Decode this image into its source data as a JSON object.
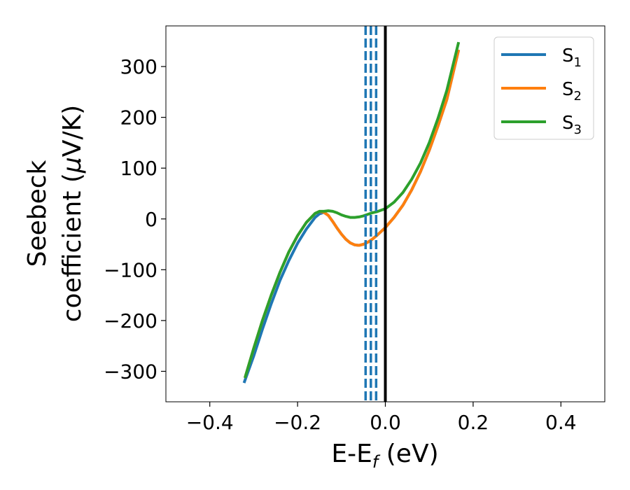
{
  "chart_data": {
    "type": "line",
    "xlabel": {
      "main": "E-E",
      "sub": "f",
      "tail": " (eV)"
    },
    "ylabel": {
      "line1": "Seebeck",
      "line2_pre": "coefficient  (",
      "line2_mu": "μ",
      "line2_post": "V/K)"
    },
    "xlim": [
      -0.5,
      0.5
    ],
    "ylim": [
      -360,
      380
    ],
    "xticks": [
      {
        "value": -0.4,
        "label": "−0.4"
      },
      {
        "value": -0.2,
        "label": "−0.2"
      },
      {
        "value": 0.0,
        "label": "0.0"
      },
      {
        "value": 0.2,
        "label": "0.2"
      },
      {
        "value": 0.4,
        "label": "0.4"
      }
    ],
    "yticks": [
      {
        "value": -300,
        "label": "−300"
      },
      {
        "value": -200,
        "label": "−200"
      },
      {
        "value": -100,
        "label": "−100"
      },
      {
        "value": 0,
        "label": "0"
      },
      {
        "value": 100,
        "label": "100"
      },
      {
        "value": 200,
        "label": "200"
      },
      {
        "value": 300,
        "label": "300"
      }
    ],
    "grid": false,
    "legend_position": "top-right",
    "fermi_line": {
      "x": 0.0,
      "color": "#000000"
    },
    "dashed_vlines": {
      "x": [
        -0.045,
        -0.033,
        -0.021
      ],
      "color": "#1f77b4"
    },
    "series": [
      {
        "name": "S",
        "sub": "1",
        "color": "#1f77b4",
        "x": [
          -0.322,
          -0.3,
          -0.28,
          -0.26,
          -0.24,
          -0.22,
          -0.2,
          -0.18,
          -0.16,
          -0.15,
          -0.14,
          -0.13,
          -0.12,
          -0.11,
          -0.1,
          -0.09,
          -0.08,
          -0.07,
          -0.06,
          -0.05,
          -0.04,
          -0.03,
          -0.02,
          -0.01,
          0.0,
          0.02,
          0.04,
          0.06,
          0.08,
          0.1,
          0.12,
          0.14,
          0.167
        ],
        "y": [
          -323,
          -270,
          -217,
          -167,
          -121,
          -82,
          -48,
          -20,
          3,
          10,
          13,
          7,
          -5,
          -18,
          -30,
          -40,
          -47,
          -51,
          -52,
          -50,
          -46,
          -40,
          -33,
          -25,
          -17,
          3,
          27,
          57,
          93,
          135,
          183,
          235,
          333
        ]
      },
      {
        "name": "S",
        "sub": "2",
        "color": "#ff7f0e",
        "x": [
          -0.32,
          -0.3,
          -0.28,
          -0.26,
          -0.24,
          -0.22,
          -0.2,
          -0.18,
          -0.16,
          -0.15,
          -0.14,
          -0.13,
          -0.12,
          -0.11,
          -0.1,
          -0.09,
          -0.08,
          -0.07,
          -0.06,
          -0.05,
          -0.04,
          -0.03,
          -0.02,
          -0.01,
          0.0,
          0.02,
          0.04,
          0.06,
          0.08,
          0.1,
          0.12,
          0.14,
          0.167
        ],
        "y": [
          -313,
          -255,
          -200,
          -150,
          -105,
          -65,
          -33,
          -7,
          11,
          15,
          13,
          7,
          -5,
          -18,
          -30,
          -40,
          -47,
          -51,
          -52,
          -50,
          -46,
          -40,
          -33,
          -25,
          -17,
          3,
          27,
          57,
          93,
          135,
          183,
          235,
          333
        ]
      },
      {
        "name": "S",
        "sub": "3",
        "color": "#2ca02c",
        "x": [
          -0.32,
          -0.3,
          -0.28,
          -0.26,
          -0.24,
          -0.22,
          -0.2,
          -0.18,
          -0.16,
          -0.15,
          -0.14,
          -0.13,
          -0.12,
          -0.11,
          -0.1,
          -0.09,
          -0.08,
          -0.07,
          -0.06,
          -0.05,
          -0.04,
          -0.03,
          -0.02,
          -0.01,
          0.0,
          0.02,
          0.04,
          0.06,
          0.08,
          0.1,
          0.12,
          0.14,
          0.167
        ],
        "y": [
          -313,
          -255,
          -200,
          -150,
          -105,
          -65,
          -33,
          -7,
          11,
          15,
          15,
          16,
          15,
          12,
          8,
          5,
          3,
          3,
          4,
          6,
          9,
          12,
          14,
          17,
          20,
          33,
          52,
          78,
          110,
          150,
          198,
          253,
          348
        ]
      }
    ]
  }
}
